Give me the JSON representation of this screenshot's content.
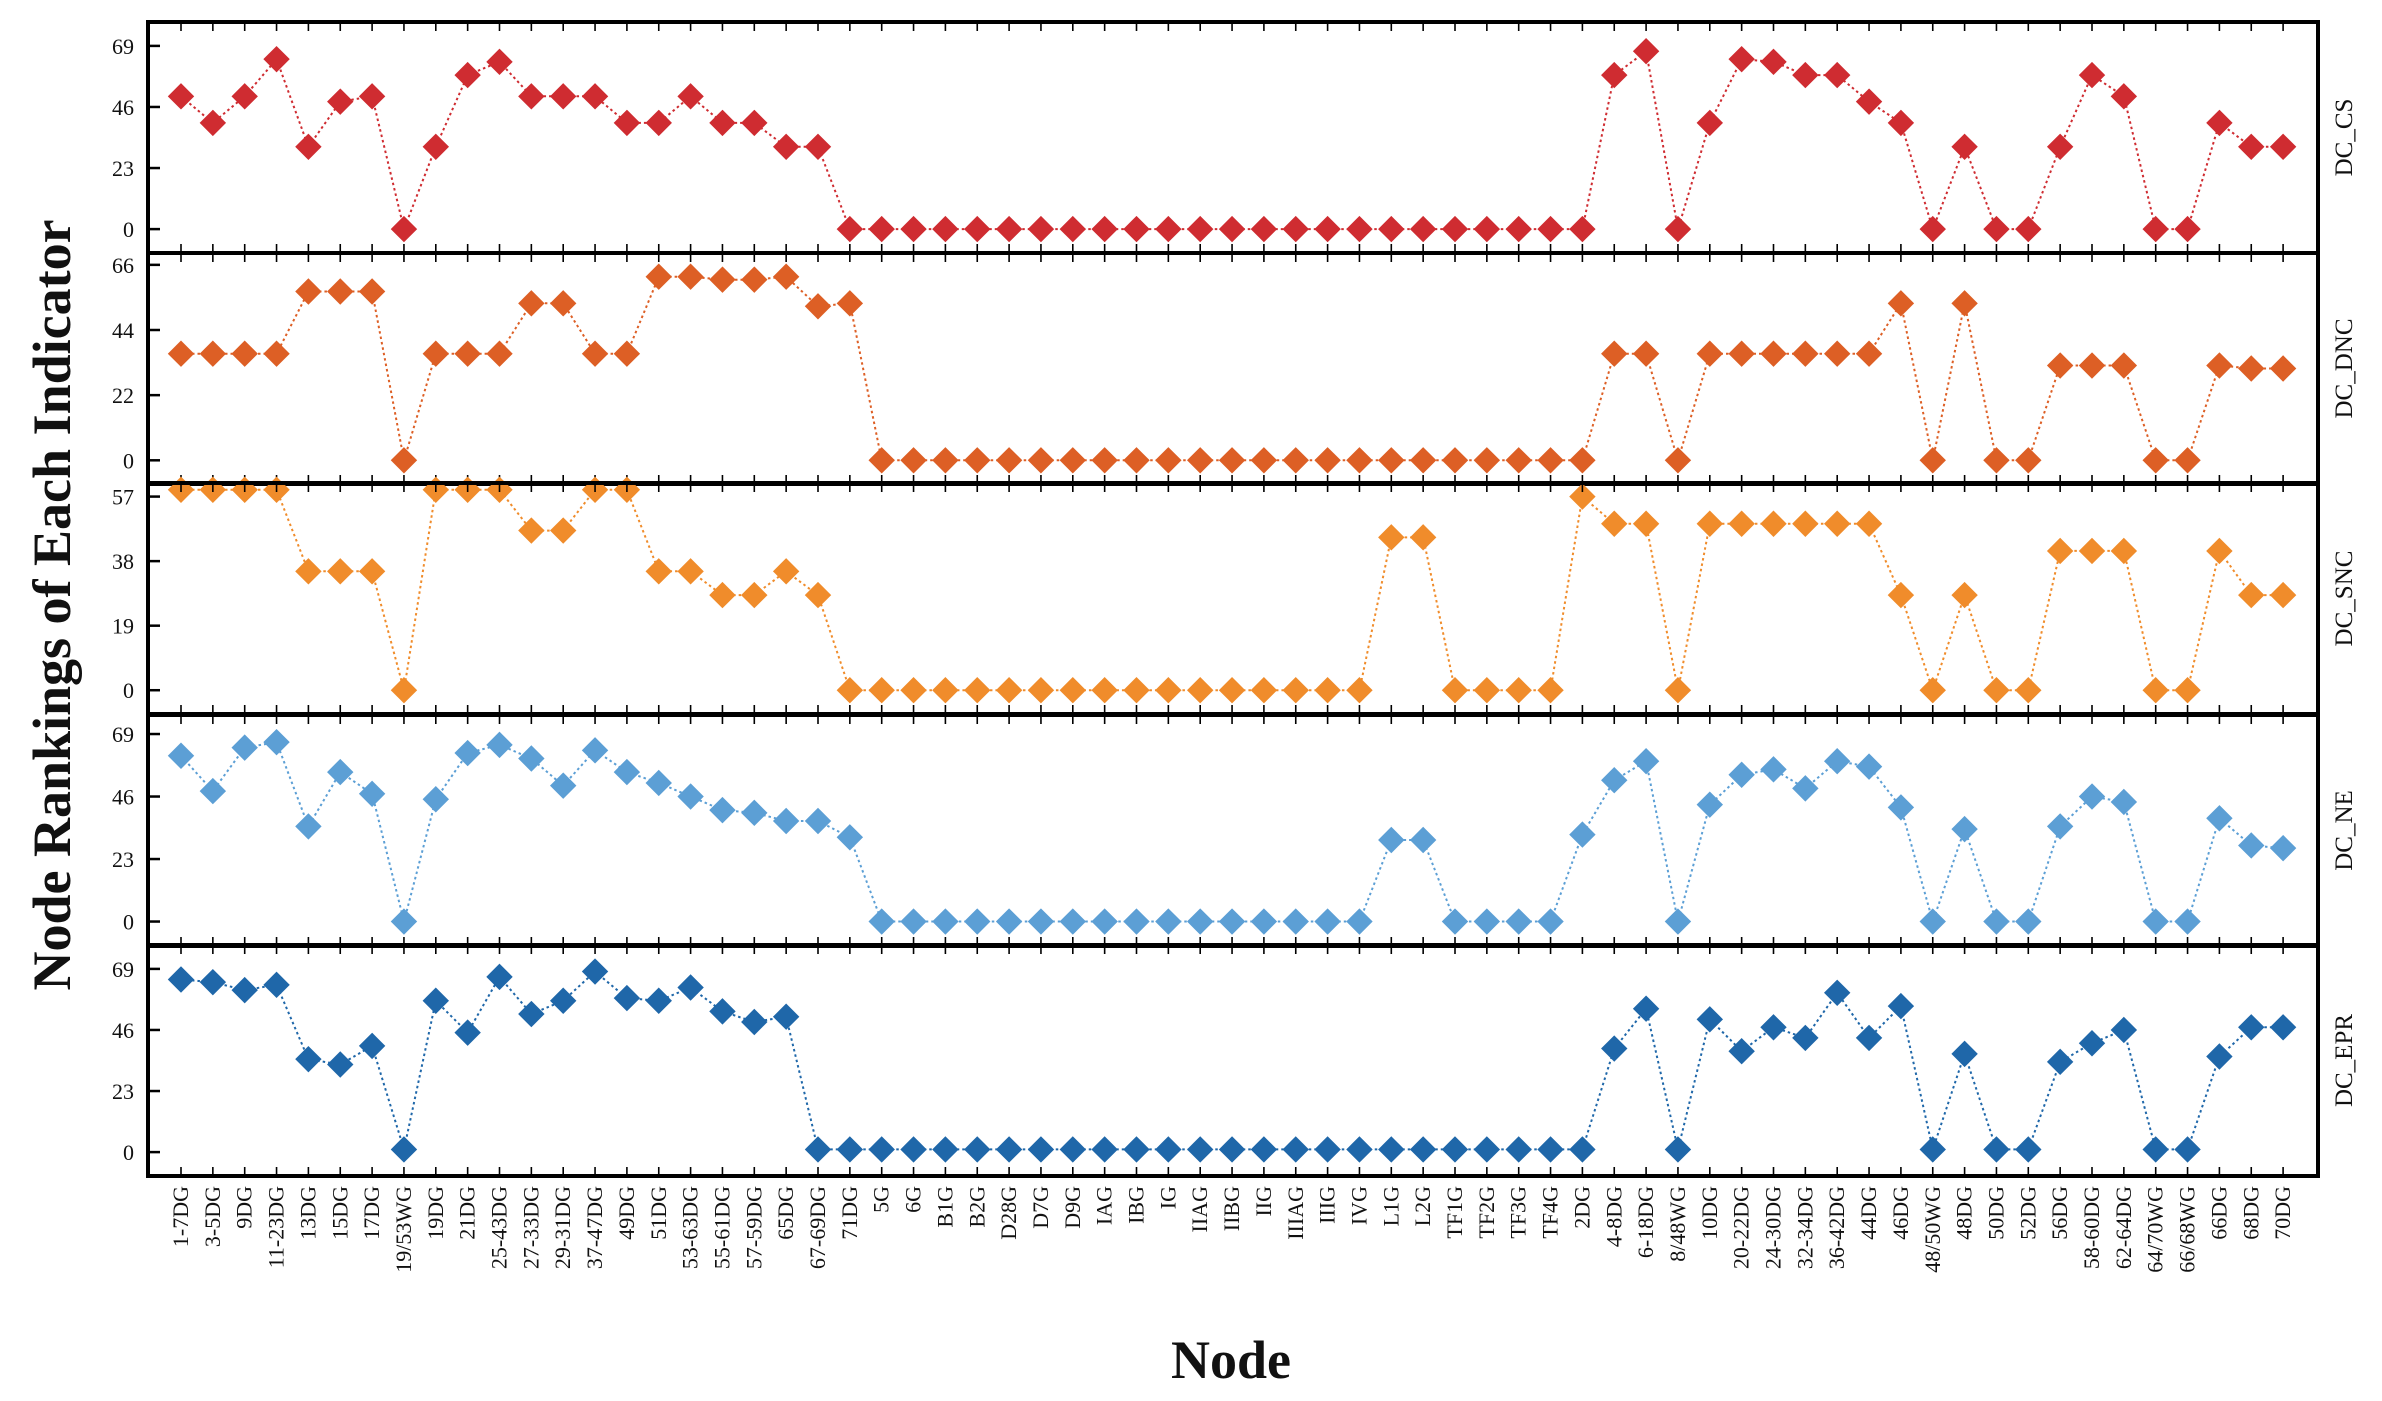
{
  "chart_data": {
    "type": "line",
    "ylabel": "Node Rankings of Each Indicator",
    "xlabel": "Node",
    "categories": [
      "1-7DG",
      "3-5DG",
      "9DG",
      "11-23DG",
      "13DG",
      "15DG",
      "17DG",
      "19/53WG",
      "19DG",
      "21DG",
      "25-43DG",
      "27-33DG",
      "29-31DG",
      "37-47DG",
      "49DG",
      "51DG",
      "53-63DG",
      "55-61DG",
      "57-59DG",
      "65DG",
      "67-69DG",
      "71DG",
      "5G",
      "6G",
      "B1G",
      "B2G",
      "D28G",
      "D7G",
      "D9G",
      "IAG",
      "IBG",
      "IG",
      "IIAG",
      "IIBG",
      "IIG",
      "IIIAG",
      "IIIG",
      "IVG",
      "L1G",
      "L2G",
      "TF1G",
      "TF2G",
      "TF3G",
      "TF4G",
      "2DG",
      "4-8DG",
      "6-18DG",
      "8/48WG",
      "10DG",
      "20-22DG",
      "24-30DG",
      "32-34DG",
      "36-42DG",
      "44DG",
      "46DG",
      "48/50WG",
      "48DG",
      "50DG",
      "52DG",
      "56DG",
      "58-60DG",
      "62-64DG",
      "64/70WG",
      "66/68WG",
      "66DG",
      "68DG",
      "70DG"
    ],
    "series": [
      {
        "name": "DC_CS",
        "color": "#cf2c31",
        "yticks": [
          0,
          23,
          46,
          69
        ],
        "ylim": [
          -9,
          78
        ],
        "values": [
          50,
          40,
          50,
          64,
          31,
          48,
          50,
          0,
          31,
          58,
          63,
          50,
          50,
          50,
          40,
          40,
          50,
          40,
          40,
          31,
          31,
          0,
          0,
          0,
          0,
          0,
          0,
          0,
          0,
          0,
          0,
          0,
          0,
          0,
          0,
          0,
          0,
          0,
          0,
          0,
          0,
          0,
          0,
          0,
          0,
          58,
          67,
          0,
          40,
          64,
          63,
          58,
          58,
          48,
          40,
          0,
          31,
          0,
          0,
          31,
          58,
          50,
          0,
          0,
          40,
          31,
          31
        ]
      },
      {
        "name": "DC_DNC",
        "color": "#dd5f25",
        "yticks": [
          0,
          22,
          44,
          66
        ],
        "ylim": [
          -8,
          70
        ],
        "values": [
          36,
          36,
          36,
          36,
          57,
          57,
          57,
          0,
          36,
          36,
          36,
          53,
          53,
          36,
          36,
          62,
          62,
          61,
          61,
          62,
          52,
          53,
          0,
          0,
          0,
          0,
          0,
          0,
          0,
          0,
          0,
          0,
          0,
          0,
          0,
          0,
          0,
          0,
          0,
          0,
          0,
          0,
          0,
          0,
          0,
          36,
          36,
          0,
          36,
          36,
          36,
          36,
          36,
          36,
          53,
          0,
          53,
          0,
          0,
          32,
          32,
          32,
          0,
          0,
          32,
          31,
          31
        ]
      },
      {
        "name": "DC_SNC",
        "color": "#f08c2b",
        "yticks": [
          0,
          19,
          38,
          57
        ],
        "ylim": [
          -7,
          61
        ],
        "values": [
          59,
          59,
          59,
          59,
          35,
          35,
          35,
          0,
          59,
          59,
          59,
          47,
          47,
          59,
          59,
          35,
          35,
          28,
          28,
          35,
          28,
          0,
          0,
          0,
          0,
          0,
          0,
          0,
          0,
          0,
          0,
          0,
          0,
          0,
          0,
          0,
          0,
          0,
          45,
          45,
          0,
          0,
          0,
          0,
          57,
          49,
          49,
          0,
          49,
          49,
          49,
          49,
          49,
          49,
          28,
          0,
          28,
          0,
          0,
          41,
          41,
          41,
          0,
          0,
          41,
          28,
          28
        ]
      },
      {
        "name": "DC_NE",
        "color": "#5c9fd5",
        "yticks": [
          0,
          23,
          46,
          69
        ],
        "ylim": [
          -9,
          76
        ],
        "values": [
          61,
          48,
          64,
          66,
          35,
          55,
          47,
          0,
          45,
          62,
          65,
          60,
          50,
          63,
          55,
          51,
          46,
          41,
          40,
          37,
          37,
          31,
          0,
          0,
          0,
          0,
          0,
          0,
          0,
          0,
          0,
          0,
          0,
          0,
          0,
          0,
          0,
          0,
          30,
          30,
          0,
          0,
          0,
          0,
          32,
          52,
          59,
          0,
          43,
          54,
          56,
          49,
          59,
          57,
          42,
          0,
          34,
          0,
          0,
          35,
          46,
          44,
          0,
          0,
          38,
          28,
          27
        ]
      },
      {
        "name": "DC_EPR",
        "color": "#1f67a9",
        "yticks": [
          0,
          23,
          46,
          69
        ],
        "ylim": [
          -9,
          78
        ],
        "values": [
          65,
          64,
          61,
          63,
          35,
          33,
          40,
          1,
          57,
          45,
          66,
          52,
          57,
          68,
          58,
          57,
          62,
          53,
          49,
          51,
          1,
          1,
          1,
          1,
          1,
          1,
          1,
          1,
          1,
          1,
          1,
          1,
          1,
          1,
          1,
          1,
          1,
          1,
          1,
          1,
          1,
          1,
          1,
          1,
          1,
          39,
          54,
          1,
          50,
          38,
          47,
          43,
          60,
          43,
          55,
          1,
          37,
          1,
          1,
          34,
          41,
          46,
          1,
          1,
          36,
          47,
          47
        ]
      }
    ]
  }
}
